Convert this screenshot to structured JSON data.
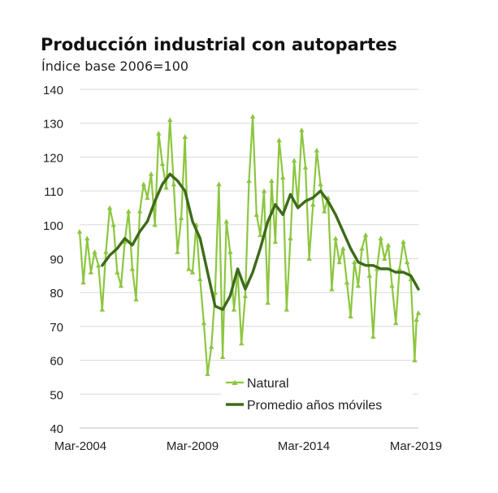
{
  "chart_data": {
    "type": "line",
    "title": "Producción industrial con autopartes",
    "subtitle": "Índice base 2006=100",
    "xlabel": "",
    "ylabel": "",
    "ylim": [
      40,
      140
    ],
    "yticks": [
      "140",
      "130",
      "120",
      "110",
      "100",
      "90",
      "80",
      "70",
      "60",
      "50",
      "40"
    ],
    "xticks": [
      "Mar-2004",
      "Mar-2009",
      "Mar-2014",
      "Mar-2019"
    ],
    "x_range": [
      "2004-03",
      "2019-03"
    ],
    "grid": true,
    "legend_position": "bottom-center",
    "series": [
      {
        "name": "Natural",
        "color": "#8cc63f",
        "marker": "triangle",
        "points": [
          [
            "2004-03",
            98
          ],
          [
            "2004-05",
            83
          ],
          [
            "2004-07",
            96
          ],
          [
            "2004-09",
            86
          ],
          [
            "2004-11",
            92
          ],
          [
            "2005-01",
            88
          ],
          [
            "2005-03",
            75
          ],
          [
            "2005-05",
            92
          ],
          [
            "2005-07",
            105
          ],
          [
            "2005-09",
            100
          ],
          [
            "2005-11",
            86
          ],
          [
            "2006-01",
            82
          ],
          [
            "2006-03",
            95
          ],
          [
            "2006-05",
            104
          ],
          [
            "2006-07",
            87
          ],
          [
            "2006-09",
            78
          ],
          [
            "2006-11",
            104
          ],
          [
            "2007-01",
            112
          ],
          [
            "2007-03",
            108
          ],
          [
            "2007-05",
            115
          ],
          [
            "2007-07",
            100
          ],
          [
            "2007-09",
            127
          ],
          [
            "2007-11",
            118
          ],
          [
            "2008-01",
            111
          ],
          [
            "2008-03",
            131
          ],
          [
            "2008-05",
            112
          ],
          [
            "2008-07",
            92
          ],
          [
            "2008-09",
            102
          ],
          [
            "2008-11",
            126
          ],
          [
            "2009-01",
            87
          ],
          [
            "2009-03",
            86
          ],
          [
            "2009-05",
            100
          ],
          [
            "2009-07",
            84
          ],
          [
            "2009-09",
            71
          ],
          [
            "2009-11",
            56
          ],
          [
            "2010-01",
            64
          ],
          [
            "2010-03",
            80
          ],
          [
            "2010-05",
            112
          ],
          [
            "2010-07",
            61
          ],
          [
            "2010-09",
            101
          ],
          [
            "2010-11",
            92
          ],
          [
            "2011-01",
            75
          ],
          [
            "2011-03",
            86
          ],
          [
            "2011-05",
            65
          ],
          [
            "2011-07",
            79
          ],
          [
            "2011-09",
            113
          ],
          [
            "2011-11",
            132
          ],
          [
            "2012-01",
            103
          ],
          [
            "2012-03",
            97
          ],
          [
            "2012-05",
            110
          ],
          [
            "2012-07",
            77
          ],
          [
            "2012-09",
            113
          ],
          [
            "2012-11",
            95
          ],
          [
            "2013-01",
            125
          ],
          [
            "2013-03",
            114
          ],
          [
            "2013-05",
            75
          ],
          [
            "2013-07",
            96
          ],
          [
            "2013-09",
            119
          ],
          [
            "2013-11",
            106
          ],
          [
            "2014-01",
            128
          ],
          [
            "2014-03",
            117
          ],
          [
            "2014-05",
            90
          ],
          [
            "2014-07",
            106
          ],
          [
            "2014-09",
            122
          ],
          [
            "2014-11",
            112
          ],
          [
            "2015-01",
            104
          ],
          [
            "2015-03",
            108
          ],
          [
            "2015-05",
            81
          ],
          [
            "2015-07",
            96
          ],
          [
            "2015-09",
            89
          ],
          [
            "2015-11",
            93
          ],
          [
            "2016-01",
            83
          ],
          [
            "2016-03",
            73
          ],
          [
            "2016-05",
            89
          ],
          [
            "2016-07",
            82
          ],
          [
            "2016-09",
            93
          ],
          [
            "2016-11",
            97
          ],
          [
            "2017-01",
            85
          ],
          [
            "2017-03",
            67
          ],
          [
            "2017-05",
            87
          ],
          [
            "2017-07",
            96
          ],
          [
            "2017-09",
            90
          ],
          [
            "2017-11",
            94
          ],
          [
            "2018-01",
            82
          ],
          [
            "2018-03",
            71
          ],
          [
            "2018-05",
            87
          ],
          [
            "2018-07",
            95
          ],
          [
            "2018-09",
            89
          ],
          [
            "2018-11",
            84
          ],
          [
            "2019-01",
            60
          ],
          [
            "2019-02",
            72
          ],
          [
            "2019-03",
            74
          ]
        ]
      },
      {
        "name": "Promedio años móviles",
        "color": "#3d6b1a",
        "points": [
          [
            "2005-03",
            88
          ],
          [
            "2005-07",
            91
          ],
          [
            "2005-11",
            93
          ],
          [
            "2006-03",
            96
          ],
          [
            "2006-07",
            94
          ],
          [
            "2006-11",
            98
          ],
          [
            "2007-03",
            101
          ],
          [
            "2007-07",
            107
          ],
          [
            "2007-11",
            112
          ],
          [
            "2008-03",
            115
          ],
          [
            "2008-07",
            113
          ],
          [
            "2008-11",
            110
          ],
          [
            "2009-03",
            101
          ],
          [
            "2009-07",
            96
          ],
          [
            "2009-11",
            86
          ],
          [
            "2010-03",
            76
          ],
          [
            "2010-07",
            75
          ],
          [
            "2010-11",
            79
          ],
          [
            "2011-03",
            87
          ],
          [
            "2011-07",
            81
          ],
          [
            "2011-11",
            86
          ],
          [
            "2012-03",
            93
          ],
          [
            "2012-07",
            101
          ],
          [
            "2012-11",
            106
          ],
          [
            "2013-03",
            103
          ],
          [
            "2013-07",
            109
          ],
          [
            "2013-11",
            105
          ],
          [
            "2014-03",
            107
          ],
          [
            "2014-07",
            108
          ],
          [
            "2014-11",
            110
          ],
          [
            "2015-03",
            107
          ],
          [
            "2015-07",
            103
          ],
          [
            "2015-11",
            98
          ],
          [
            "2016-03",
            93
          ],
          [
            "2016-07",
            89
          ],
          [
            "2016-11",
            88
          ],
          [
            "2017-03",
            88
          ],
          [
            "2017-07",
            87
          ],
          [
            "2017-11",
            87
          ],
          [
            "2018-03",
            86
          ],
          [
            "2018-07",
            86
          ],
          [
            "2018-11",
            85
          ],
          [
            "2019-03",
            81
          ]
        ]
      }
    ]
  }
}
